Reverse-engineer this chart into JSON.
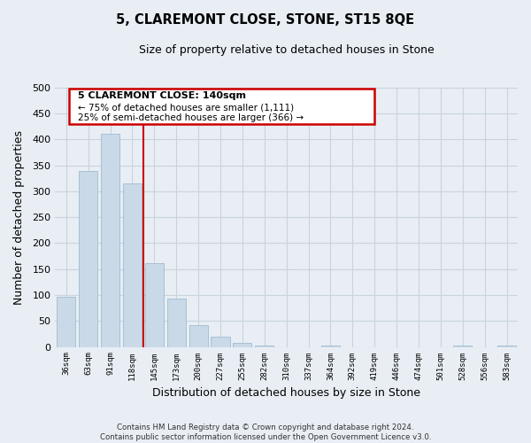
{
  "title": "5, CLAREMONT CLOSE, STONE, ST15 8QE",
  "subtitle": "Size of property relative to detached houses in Stone",
  "xlabel": "Distribution of detached houses by size in Stone",
  "ylabel": "Number of detached properties",
  "bar_labels": [
    "36sqm",
    "63sqm",
    "91sqm",
    "118sqm",
    "145sqm",
    "173sqm",
    "200sqm",
    "227sqm",
    "255sqm",
    "282sqm",
    "310sqm",
    "337sqm",
    "364sqm",
    "392sqm",
    "419sqm",
    "446sqm",
    "474sqm",
    "501sqm",
    "528sqm",
    "556sqm",
    "583sqm"
  ],
  "bar_values": [
    97,
    340,
    411,
    315,
    162,
    93,
    42,
    20,
    8,
    3,
    0,
    0,
    2,
    0,
    0,
    0,
    0,
    0,
    3,
    0,
    2
  ],
  "bar_color": "#c9d9e8",
  "bar_edge_color": "#a8c0d4",
  "property_label": "5 CLAREMONT CLOSE: 140sqm",
  "vline_color": "#cc0000",
  "vline_x": 3.5,
  "annotation_text_1": "← 75% of detached houses are smaller (1,111)",
  "annotation_text_2": "25% of semi-detached houses are larger (366) →",
  "box_color": "#cc0000",
  "footer_text": "Contains HM Land Registry data © Crown copyright and database right 2024.\nContains public sector information licensed under the Open Government Licence v3.0.",
  "ylim": [
    0,
    500
  ],
  "background_color": "#e8eef4",
  "plot_background": "#e8eef4",
  "grid_color": "#c8d4dc"
}
